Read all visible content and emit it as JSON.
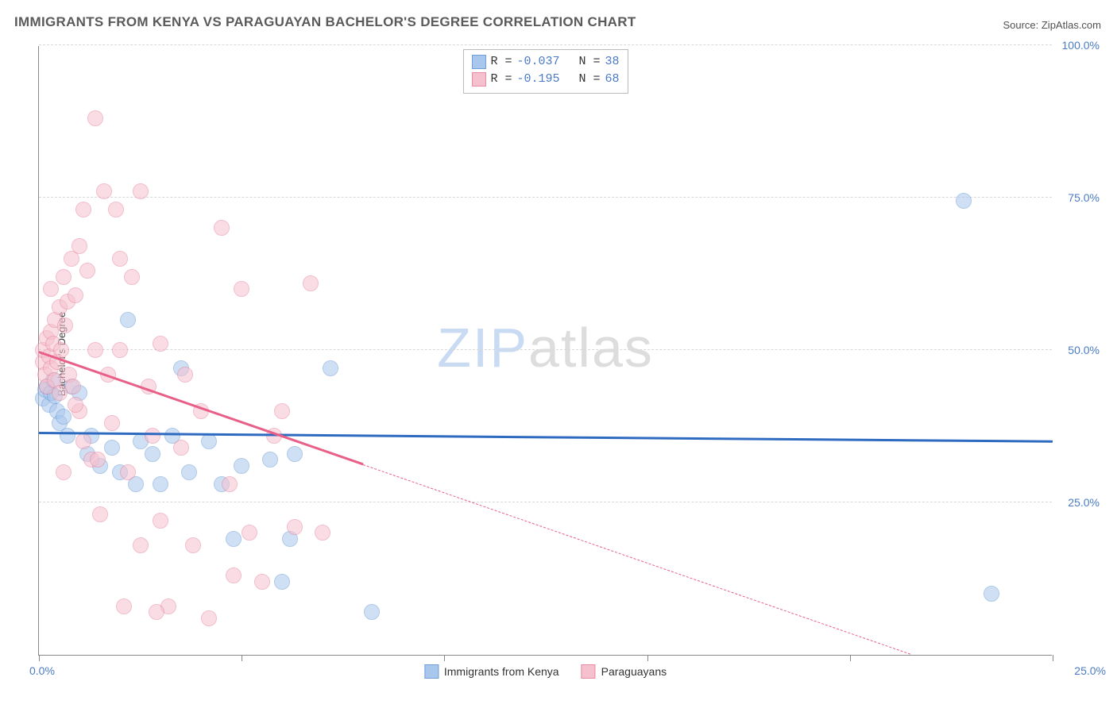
{
  "title": "IMMIGRANTS FROM KENYA VS PARAGUAYAN BACHELOR'S DEGREE CORRELATION CHART",
  "source_label": "Source: ",
  "source_value": "ZipAtlas.com",
  "y_axis_label": "Bachelor's Degree",
  "watermark": {
    "part1": "ZIP",
    "part2": "atlas"
  },
  "chart": {
    "type": "scatter",
    "xlim": [
      0,
      25
    ],
    "ylim": [
      0,
      100
    ],
    "x_ticks": [
      0,
      5,
      10,
      15,
      20,
      25
    ],
    "y_ticks": [
      25,
      50,
      75,
      100
    ],
    "y_tick_labels": [
      "25.0%",
      "50.0%",
      "75.0%",
      "100.0%"
    ],
    "x_tick_label_left": "0.0%",
    "x_tick_label_right": "25.0%",
    "grid_color": "#d8d8d8",
    "axis_color": "#888888",
    "background_color": "#ffffff",
    "tick_label_color": "#4a7bc4",
    "point_radius": 10,
    "point_opacity": 0.55,
    "series": [
      {
        "name": "Immigrants from Kenya",
        "fill": "#a9c7ec",
        "stroke": "#6f9fd8",
        "R": "-0.037",
        "N": "38",
        "trend": {
          "x1": 0,
          "y1": 36.2,
          "x2": 25,
          "y2": 34.8,
          "solid_until_x": 25,
          "color": "#2e6bc0"
        },
        "points": [
          [
            0.1,
            42
          ],
          [
            0.15,
            43.5
          ],
          [
            0.2,
            44
          ],
          [
            0.25,
            41
          ],
          [
            0.3,
            43
          ],
          [
            0.35,
            45
          ],
          [
            0.4,
            42.5
          ],
          [
            0.45,
            40
          ],
          [
            0.5,
            38
          ],
          [
            0.8,
            44
          ],
          [
            1.0,
            43
          ],
          [
            1.2,
            33
          ],
          [
            1.5,
            31
          ],
          [
            1.3,
            36
          ],
          [
            2.0,
            30
          ],
          [
            2.2,
            55
          ],
          [
            2.5,
            35
          ],
          [
            2.8,
            33
          ],
          [
            3.0,
            28
          ],
          [
            3.3,
            36
          ],
          [
            3.5,
            47
          ],
          [
            3.7,
            30
          ],
          [
            4.2,
            35
          ],
          [
            4.5,
            28
          ],
          [
            5.0,
            31
          ],
          [
            5.7,
            32
          ],
          [
            6.2,
            19
          ],
          [
            6.3,
            33
          ],
          [
            6.0,
            12
          ],
          [
            7.2,
            47
          ],
          [
            8.2,
            7
          ],
          [
            22.8,
            74.5
          ],
          [
            23.5,
            10
          ],
          [
            1.8,
            34
          ],
          [
            0.6,
            39
          ],
          [
            0.7,
            36
          ],
          [
            4.8,
            19
          ],
          [
            2.4,
            28
          ]
        ]
      },
      {
        "name": "Paraguayans",
        "fill": "#f6c1cf",
        "stroke": "#e88aa3",
        "R": "-0.195",
        "N": "68",
        "trend": {
          "x1": 0,
          "y1": 49.5,
          "x2": 21.5,
          "y2": 0,
          "solid_until_x": 8.0,
          "color": "#e85f88"
        },
        "points": [
          [
            0.1,
            48
          ],
          [
            0.1,
            50
          ],
          [
            0.15,
            46
          ],
          [
            0.2,
            52
          ],
          [
            0.2,
            44
          ],
          [
            0.25,
            49
          ],
          [
            0.3,
            47
          ],
          [
            0.3,
            53
          ],
          [
            0.35,
            51
          ],
          [
            0.4,
            45
          ],
          [
            0.4,
            55
          ],
          [
            0.45,
            48
          ],
          [
            0.5,
            57
          ],
          [
            0.5,
            43
          ],
          [
            0.55,
            50
          ],
          [
            0.6,
            62
          ],
          [
            0.65,
            54
          ],
          [
            0.7,
            58
          ],
          [
            0.75,
            46
          ],
          [
            0.8,
            65
          ],
          [
            0.85,
            44
          ],
          [
            0.9,
            59
          ],
          [
            1.0,
            40
          ],
          [
            1.0,
            67
          ],
          [
            1.1,
            35
          ],
          [
            1.2,
            63
          ],
          [
            1.3,
            32
          ],
          [
            1.4,
            88
          ],
          [
            1.5,
            23
          ],
          [
            1.6,
            76
          ],
          [
            1.7,
            46
          ],
          [
            1.8,
            38
          ],
          [
            1.9,
            73
          ],
          [
            2.0,
            50
          ],
          [
            2.0,
            65
          ],
          [
            2.2,
            30
          ],
          [
            2.3,
            62
          ],
          [
            2.5,
            76
          ],
          [
            2.5,
            18
          ],
          [
            2.7,
            44
          ],
          [
            2.8,
            36
          ],
          [
            3.0,
            51
          ],
          [
            3.0,
            22
          ],
          [
            3.2,
            8
          ],
          [
            3.5,
            34
          ],
          [
            3.6,
            46
          ],
          [
            4.0,
            40
          ],
          [
            4.2,
            6
          ],
          [
            4.5,
            70
          ],
          [
            4.7,
            28
          ],
          [
            4.8,
            13
          ],
          [
            5.0,
            60
          ],
          [
            5.2,
            20
          ],
          [
            5.5,
            12
          ],
          [
            5.8,
            36
          ],
          [
            6.0,
            40
          ],
          [
            6.3,
            21
          ],
          [
            6.7,
            61
          ],
          [
            7.0,
            20
          ],
          [
            1.1,
            73
          ],
          [
            0.6,
            30
          ],
          [
            0.3,
            60
          ],
          [
            1.4,
            50
          ],
          [
            0.9,
            41
          ],
          [
            2.1,
            8
          ],
          [
            1.45,
            32
          ],
          [
            2.9,
            7
          ],
          [
            3.8,
            18
          ]
        ]
      }
    ]
  },
  "bottom_legend": [
    {
      "label": "Immigrants from Kenya",
      "fill": "#a9c7ec",
      "stroke": "#6f9fd8"
    },
    {
      "label": "Paraguayans",
      "fill": "#f6c1cf",
      "stroke": "#e88aa3"
    }
  ]
}
